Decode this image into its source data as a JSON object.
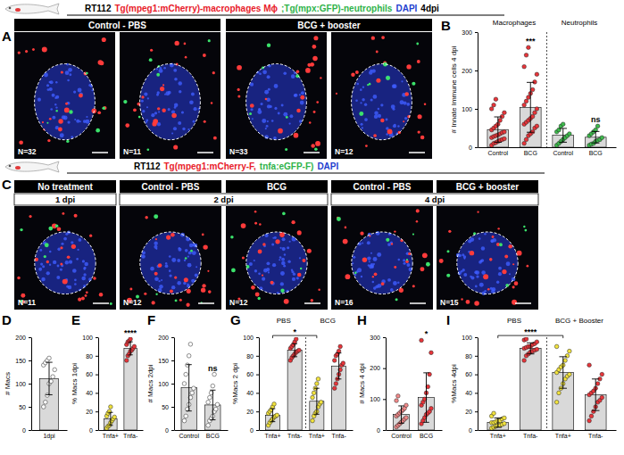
{
  "figure": {
    "rows": [
      {
        "panel": "A",
        "title": [
          {
            "text": "RT112",
            "color": "#000000"
          },
          {
            "text": "Tg(mpeg1:mCherry)-macrophages Mɸ",
            "color": "#e8202a"
          },
          {
            "text": ";Tg(mpx:GFP)-neutrophils",
            "color": "#2fb34a"
          },
          {
            "text": "DAPI",
            "color": "#1f3fcf"
          },
          {
            "text": "4dpi",
            "color": "#000000"
          }
        ],
        "headers": [
          "Control - PBS",
          "Control - PBS",
          "BCG + booster",
          "BCG + booster"
        ],
        "n_labels": [
          "N=32",
          "N=11",
          "N=33",
          "N=12"
        ]
      },
      {
        "panel": "C",
        "title": [
          {
            "text": "RT112",
            "color": "#000000"
          },
          {
            "text": "Tg(mpeg1:mCherry-F,",
            "color": "#e8202a"
          },
          {
            "text": "tnfa:eGFP-F)",
            "color": "#2fb34a"
          },
          {
            "text": "DAPI",
            "color": "#1f3fcf"
          }
        ],
        "headers": [
          "No treatment",
          "Control - PBS",
          "BCG",
          "Control - PBS",
          "BCG + booster"
        ],
        "days": [
          "1 dpi",
          "2 dpi",
          "2 dpi",
          "4 dpi",
          "4 dpi"
        ],
        "n_labels": [
          "N=11",
          "N=12",
          "N=12",
          "N=16",
          "N=15"
        ]
      }
    ]
  },
  "chart_data": [
    {
      "panel": "B",
      "type": "bar",
      "y_label": "# Innate Immune cells 4 dpi",
      "categories": [
        "Control",
        "BCG",
        "Control",
        "BCG"
      ],
      "group_labels": [
        "Macrophages",
        "Macrophages",
        "Neutrophils",
        "Neutrophils"
      ],
      "values": [
        46,
        104,
        31,
        26
      ],
      "errors": [
        33,
        65,
        18,
        15
      ],
      "points": [
        [
          5,
          10,
          12,
          15,
          18,
          20,
          22,
          25,
          28,
          30,
          32,
          35,
          38,
          40,
          45,
          50,
          55,
          60,
          70,
          80,
          90,
          100,
          110,
          125
        ],
        [
          10,
          20,
          30,
          35,
          40,
          50,
          55,
          60,
          65,
          70,
          75,
          80,
          90,
          100,
          110,
          120,
          130,
          140,
          150,
          170,
          190,
          210,
          240,
          260
        ],
        [
          5,
          10,
          15,
          20,
          25,
          30,
          35,
          40,
          45,
          55,
          60
        ],
        [
          5,
          8,
          10,
          15,
          18,
          20,
          25,
          30,
          35,
          40,
          45,
          55
        ]
      ],
      "color": "#d9d9d9",
      "colors": [
        "#e8353a",
        "#e8353a",
        "#3dbb4c",
        "#3dbb4c"
      ],
      "significance": [
        null,
        "***",
        null,
        "ns"
      ],
      "ylim": [
        0,
        300
      ],
      "yticks": [
        0,
        100,
        200,
        300
      ]
    },
    {
      "panel": "D",
      "type": "bar",
      "y_label": "# Macs",
      "categories": [
        "1dpi"
      ],
      "values": [
        111
      ],
      "errors": [
        35
      ],
      "points": [
        [
          50,
          60,
          75,
          100,
          105,
          115,
          130,
          140,
          145,
          150,
          155
        ]
      ],
      "color": "#d9d9d9",
      "colors": [
        "#ffffff"
      ],
      "ylim": [
        0,
        200
      ],
      "yticks": [
        0,
        50,
        100,
        150,
        200
      ]
    },
    {
      "panel": "E",
      "type": "bar",
      "y_label": "% Macs 1dpi",
      "categories": [
        "Tnfa+",
        "Tnfa-"
      ],
      "values": [
        12,
        88
      ],
      "errors": [
        7,
        7
      ],
      "points": [
        [
          2,
          4,
          5,
          8,
          10,
          12,
          14,
          15,
          18,
          20,
          25
        ],
        [
          75,
          80,
          82,
          85,
          86,
          88,
          90,
          92,
          95,
          96,
          98
        ]
      ],
      "color": "#d9d9d9",
      "colors": [
        "#f2e33d",
        "#e8353a"
      ],
      "significance": [
        null,
        "****"
      ],
      "ylim": [
        0,
        100
      ],
      "yticks": [
        0,
        20,
        40,
        60,
        80,
        100
      ]
    },
    {
      "panel": "F",
      "type": "bar",
      "y_label": "# Macs 2dpi",
      "categories": [
        "Control",
        "BCG"
      ],
      "values": [
        91,
        54
      ],
      "errors": [
        50,
        32
      ],
      "points": [
        [
          20,
          30,
          45,
          55,
          70,
          80,
          90,
          100,
          120,
          140,
          160,
          185
        ],
        [
          10,
          20,
          25,
          30,
          40,
          45,
          55,
          60,
          70,
          80,
          95,
          120
        ]
      ],
      "color": "#d9d9d9",
      "colors": [
        "#ffffff",
        "#ffffff"
      ],
      "significance": [
        null,
        "ns"
      ],
      "ylim": [
        0,
        200
      ],
      "yticks": [
        0,
        50,
        100,
        150,
        200
      ]
    },
    {
      "panel": "G",
      "type": "bar",
      "y_label": "%Macs 2 dpi",
      "categories": [
        "Tnfa+",
        "Tnfa-",
        "Tnfa+",
        "Tnfa-"
      ],
      "group_labels": [
        "PBS",
        "PBS",
        "BCG",
        "BCG"
      ],
      "values": [
        16,
        86,
        31,
        69
      ],
      "errors": [
        7,
        7,
        14,
        14
      ],
      "points": [
        [
          5,
          8,
          10,
          12,
          14,
          15,
          16,
          18,
          20,
          22,
          25,
          28
        ],
        [
          75,
          78,
          80,
          82,
          84,
          85,
          86,
          88,
          90,
          92,
          95,
          98
        ],
        [
          10,
          15,
          18,
          20,
          25,
          28,
          30,
          35,
          40,
          45,
          50,
          55
        ],
        [
          45,
          50,
          55,
          60,
          65,
          70,
          72,
          75,
          80,
          82,
          85,
          90
        ]
      ],
      "color": "#d9d9d9",
      "colors": [
        "#f2e33d",
        "#e8353a",
        "#f2e33d",
        "#e8353a"
      ],
      "brackets": [
        {
          "text": "*",
          "between": [
            0,
            2
          ]
        }
      ],
      "ylim": [
        0,
        100
      ],
      "yticks": [
        0,
        20,
        40,
        60,
        80,
        100
      ]
    },
    {
      "panel": "H",
      "type": "bar",
      "y_label": "# Macs 4 dpi",
      "categories": [
        "Control",
        "BCG"
      ],
      "values": [
        50,
        105
      ],
      "errors": [
        28,
        80
      ],
      "points": [
        [
          10,
          15,
          20,
          25,
          30,
          35,
          40,
          45,
          50,
          55,
          60,
          65,
          70,
          80,
          95,
          110
        ],
        [
          20,
          30,
          40,
          50,
          55,
          60,
          70,
          80,
          90,
          100,
          120,
          140,
          180,
          250,
          290
        ]
      ],
      "color": "#d9d9d9",
      "colors": [
        "#f28a8a",
        "#e8353a"
      ],
      "significance": [
        null,
        "*"
      ],
      "ylim": [
        0,
        300
      ],
      "yticks": [
        0,
        100,
        200,
        300
      ]
    },
    {
      "panel": "I",
      "type": "bar",
      "y_label": "%Macs 4dpi",
      "categories": [
        "Tnfa+",
        "Tnfa-",
        "Tnfa+",
        "Tnfa-"
      ],
      "group_labels": [
        "PBS",
        "PBS",
        "BCG + Booster",
        "BCG + Booster"
      ],
      "values": [
        8,
        88,
        62,
        38
      ],
      "errors": [
        5,
        6,
        17,
        17
      ],
      "points": [
        [
          2,
          3,
          4,
          5,
          5,
          6,
          7,
          8,
          8,
          9,
          10,
          10,
          12,
          13,
          15,
          18
        ],
        [
          75,
          80,
          82,
          84,
          85,
          86,
          87,
          88,
          89,
          90,
          90,
          92,
          93,
          95,
          97,
          98
        ],
        [
          30,
          40,
          45,
          50,
          55,
          58,
          60,
          62,
          65,
          68,
          70,
          75,
          80,
          85,
          90
        ],
        [
          10,
          15,
          20,
          25,
          30,
          32,
          35,
          38,
          40,
          42,
          45,
          50,
          55,
          60,
          70
        ]
      ],
      "color": "#d9d9d9",
      "colors": [
        "#f2e33d",
        "#e8353a",
        "#f2e33d",
        "#e8353a"
      ],
      "brackets": [
        {
          "text": "****",
          "between": [
            0,
            2
          ]
        }
      ],
      "ylim": [
        0,
        100
      ],
      "yticks": [
        0,
        20,
        40,
        60,
        80,
        100
      ]
    }
  ]
}
